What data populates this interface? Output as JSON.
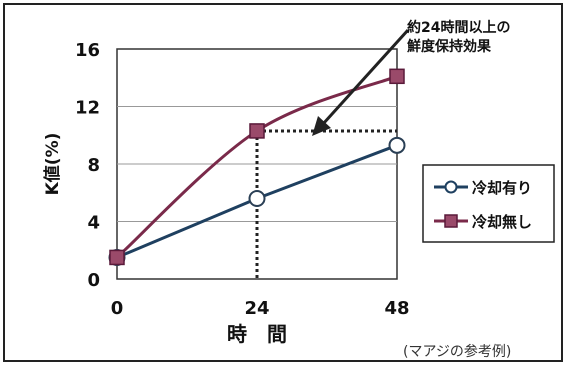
{
  "chart_data": {
    "type": "line",
    "x": [
      0,
      24,
      48
    ],
    "xticks": [
      "0",
      "24",
      "48"
    ],
    "yticks": [
      "0",
      "4",
      "8",
      "12",
      "16"
    ],
    "xlabel": "時　間",
    "ylabel": "K値(%)",
    "ylim": [
      0,
      16
    ],
    "xlim": [
      0,
      48
    ],
    "grid": "horizontal",
    "legend_position": "right",
    "series": [
      {
        "name": "冷却有り",
        "values": [
          1.5,
          5.6,
          9.3
        ],
        "color": "#1f4060",
        "marker": "open-circle"
      },
      {
        "name": "冷却無し",
        "values": [
          1.5,
          10.3,
          14.1
        ],
        "color": "#7a2a4a",
        "marker": "filled-square"
      }
    ],
    "annotation": {
      "lines": [
        "約24時間以上の",
        "鮮度保持効果"
      ],
      "reference_level": 10.3,
      "reference_x": 24
    },
    "source_note": "(マアジの参考例)"
  }
}
